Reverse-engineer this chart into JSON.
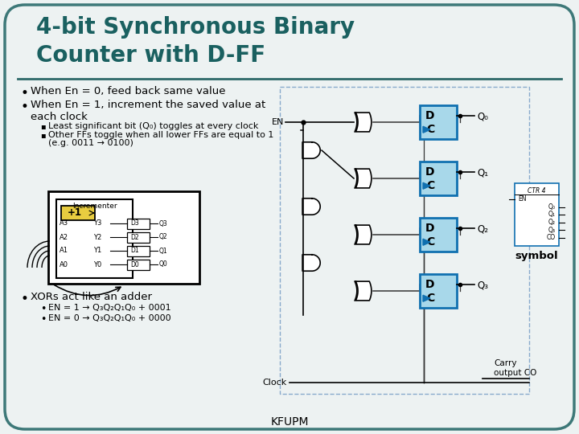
{
  "title_line1": "4-bit Synchronous Binary",
  "title_line2": "Counter with D-FF",
  "title_color": "#1a6060",
  "bg_color": "#edf2f2",
  "border_color": "#3d7878",
  "separator_color": "#2d6868",
  "bullet1": "When En = 0, feed back same value",
  "bullet2a": "When En = 1, increment the saved value at",
  "bullet2b": "each clock",
  "sub1": "Least significant bit (Q₀) toggles at every clock",
  "sub2a": "Other FFs toggle when all lower FFs are equal to 1",
  "sub2b": "(e.g. 0011 → 0100)",
  "bullet3": "XORs act like an adder",
  "sub3a": "EN = 1 → Q₃Q₂Q₁Q₀ + 0001",
  "sub3b": "EN = 0 → Q₃Q₂Q₁Q₀ + 0000",
  "footer": "KFUPM",
  "symbol_label": "symbol",
  "dff_fill": "#a8d8ea",
  "dff_border": "#1070b0",
  "dash_color": "#88aacc",
  "wire_color": "#333333"
}
